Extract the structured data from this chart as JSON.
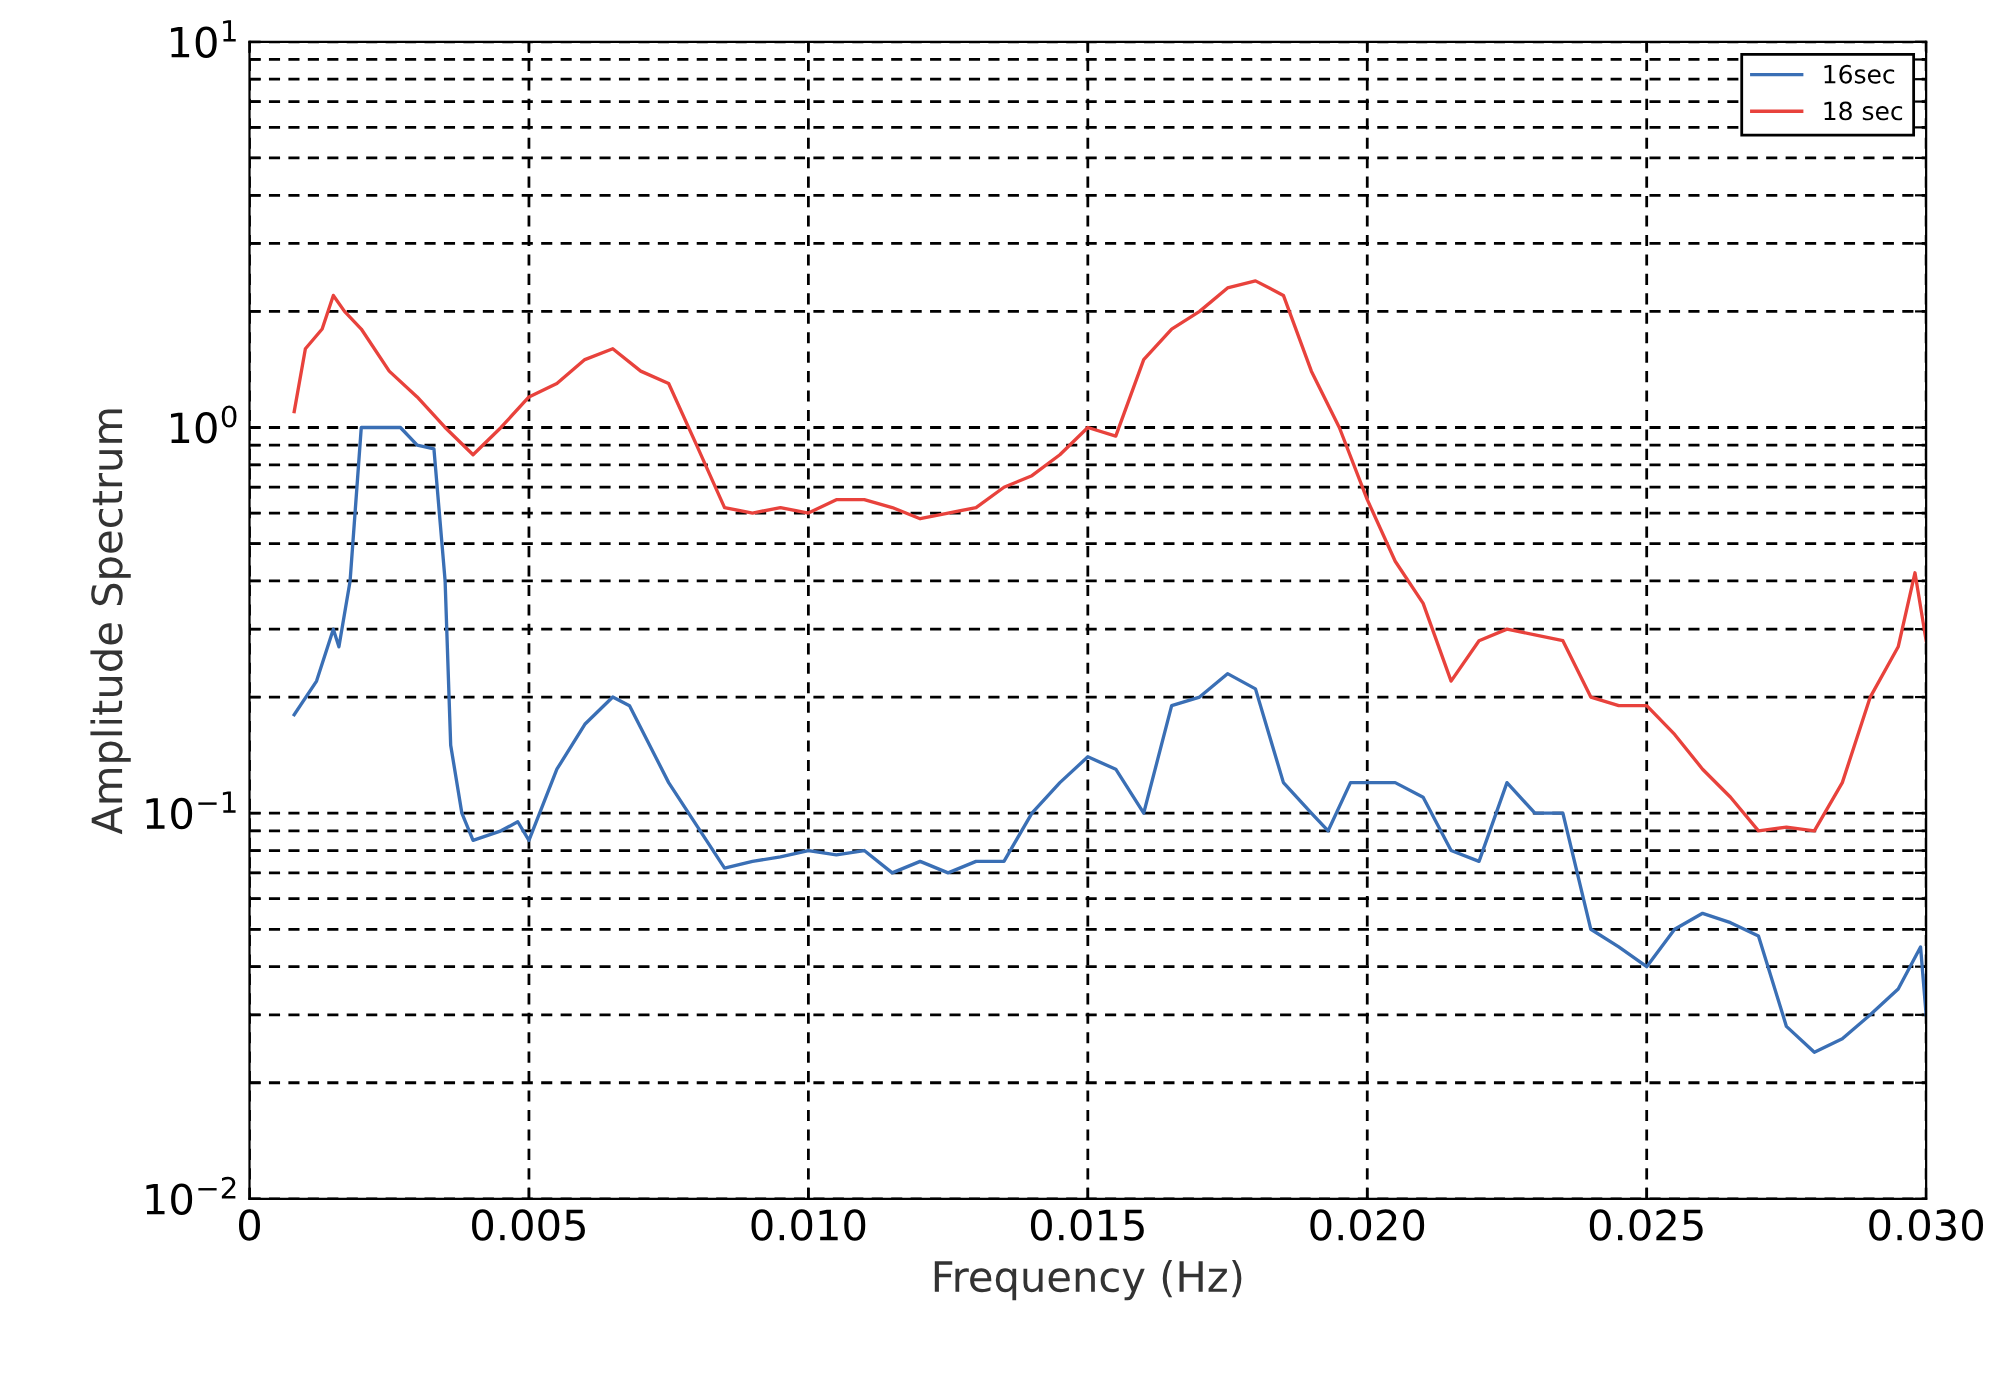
{
  "chart_data": {
    "type": "line",
    "xlabel": "Frequency (Hz)",
    "ylabel": "Amplitude Spectrum",
    "log": "y",
    "grid": true,
    "line_style": "solid",
    "marker": "none",
    "legend": "top right",
    "xlim": [
      0,
      0.03
    ],
    "xticks": [
      0,
      {
        "value": 0.005,
        "label": "0.005"
      },
      {
        "value": 0.01,
        "label": "0.010"
      },
      {
        "value": 0.015,
        "label": "0.015"
      },
      {
        "value": 0.02,
        "label": "0.020"
      },
      {
        "value": 0.025,
        "label": "0.025"
      },
      {
        "value": 0.03,
        "label": "0.030"
      }
    ],
    "ylim": [
      0.01,
      10
    ],
    "yticks": [
      {
        "value": 0.01,
        "label": "10$^{−2}$"
      },
      {
        "value": 0.02,
        "label": null
      },
      {
        "value": 0.03,
        "label": null
      },
      {
        "value": 0.04,
        "label": null
      },
      {
        "value": 0.05,
        "label": null
      },
      {
        "value": 0.06,
        "label": null
      },
      {
        "value": 0.07,
        "label": null
      },
      {
        "value": 0.08,
        "label": null
      },
      {
        "value": 0.09,
        "label": null
      },
      {
        "value": 0.1,
        "label": "10$^{−1}$"
      },
      {
        "value": 0.2,
        "label": null
      },
      {
        "value": 0.3,
        "label": null
      },
      {
        "value": 0.4,
        "label": null
      },
      {
        "value": 0.5,
        "label": null
      },
      {
        "value": 0.6,
        "label": null
      },
      {
        "value": 0.7,
        "label": null
      },
      {
        "value": 0.8,
        "label": null
      },
      {
        "value": 0.9,
        "label": null
      },
      {
        "value": 1,
        "label": "10$^{0}$"
      },
      {
        "value": 2,
        "label": null
      },
      {
        "value": 3,
        "label": null
      },
      {
        "value": 4,
        "label": null
      },
      {
        "value": 5,
        "label": null
      },
      {
        "value": 6,
        "label": null
      },
      {
        "value": 7,
        "label": null
      },
      {
        "value": 8,
        "label": null
      },
      {
        "value": 9,
        "label": null
      },
      {
        "value": 10,
        "label": "10$^{1}$"
      }
    ],
    "series": [
      {
        "name": "16sec",
        "color": "#3a6fb5",
        "x": [
          0.0008,
          0.0012,
          0.0015,
          0.0016,
          0.0018,
          0.002,
          0.0027,
          0.003,
          0.0033,
          0.0035,
          0.0036,
          0.0038,
          0.004,
          0.0045,
          0.0048,
          0.005,
          0.0055,
          0.006,
          0.0065,
          0.0068,
          0.0075,
          0.0085,
          0.009,
          0.0095,
          0.01,
          0.0105,
          0.011,
          0.0115,
          0.012,
          0.0125,
          0.013,
          0.0135,
          0.014,
          0.0145,
          0.015,
          0.0155,
          0.016,
          0.0165,
          0.017,
          0.0175,
          0.018,
          0.0185,
          0.019,
          0.0193,
          0.0197,
          0.02,
          0.0205,
          0.021,
          0.0215,
          0.022,
          0.0225,
          0.023,
          0.0235,
          0.024,
          0.0245,
          0.025,
          0.0255,
          0.026,
          0.0265,
          0.027,
          0.0275,
          0.028,
          0.0285,
          0.029,
          0.0295,
          0.0299,
          0.03
        ],
        "values": [
          0.18,
          0.22,
          0.3,
          0.27,
          0.4,
          1.0,
          1.0,
          0.9,
          0.88,
          0.4,
          0.15,
          0.1,
          0.085,
          0.09,
          0.095,
          0.085,
          0.13,
          0.17,
          0.2,
          0.19,
          0.12,
          0.072,
          0.075,
          0.077,
          0.08,
          0.078,
          0.08,
          0.07,
          0.075,
          0.07,
          0.075,
          0.075,
          0.1,
          0.12,
          0.14,
          0.13,
          0.1,
          0.19,
          0.2,
          0.23,
          0.21,
          0.12,
          0.1,
          0.09,
          0.12,
          0.12,
          0.12,
          0.11,
          0.08,
          0.075,
          0.12,
          0.1,
          0.1,
          0.05,
          0.045,
          0.04,
          0.05,
          0.055,
          0.052,
          0.048,
          0.028,
          0.024,
          0.026,
          0.03,
          0.035,
          0.045,
          0.03
        ]
      },
      {
        "name": "18 sec",
        "color": "#e8423c",
        "x": [
          0.0008,
          0.001,
          0.0013,
          0.0015,
          0.0017,
          0.002,
          0.0025,
          0.003,
          0.0035,
          0.004,
          0.0045,
          0.005,
          0.0055,
          0.006,
          0.0065,
          0.007,
          0.0075,
          0.008,
          0.0085,
          0.009,
          0.0095,
          0.01,
          0.0105,
          0.011,
          0.0115,
          0.012,
          0.0125,
          0.013,
          0.0135,
          0.014,
          0.0145,
          0.015,
          0.0155,
          0.016,
          0.0165,
          0.017,
          0.0175,
          0.018,
          0.0185,
          0.019,
          0.0195,
          0.02,
          0.0205,
          0.021,
          0.0215,
          0.022,
          0.0225,
          0.023,
          0.0235,
          0.024,
          0.0245,
          0.025,
          0.0255,
          0.026,
          0.0265,
          0.027,
          0.0275,
          0.028,
          0.0285,
          0.029,
          0.0295,
          0.0298,
          0.03
        ],
        "values": [
          1.1,
          1.6,
          1.8,
          2.2,
          2.0,
          1.8,
          1.4,
          1.2,
          1.0,
          0.85,
          1.0,
          1.2,
          1.3,
          1.5,
          1.6,
          1.4,
          1.3,
          0.9,
          0.62,
          0.6,
          0.62,
          0.6,
          0.65,
          0.65,
          0.62,
          0.58,
          0.6,
          0.62,
          0.7,
          0.75,
          0.85,
          1.0,
          0.95,
          1.5,
          1.8,
          2.0,
          2.3,
          2.4,
          2.2,
          1.4,
          1.0,
          0.65,
          0.45,
          0.35,
          0.22,
          0.28,
          0.3,
          0.29,
          0.28,
          0.2,
          0.19,
          0.19,
          0.16,
          0.13,
          0.11,
          0.09,
          0.092,
          0.09,
          0.12,
          0.2,
          0.27,
          0.42,
          0.28
        ]
      }
    ]
  }
}
